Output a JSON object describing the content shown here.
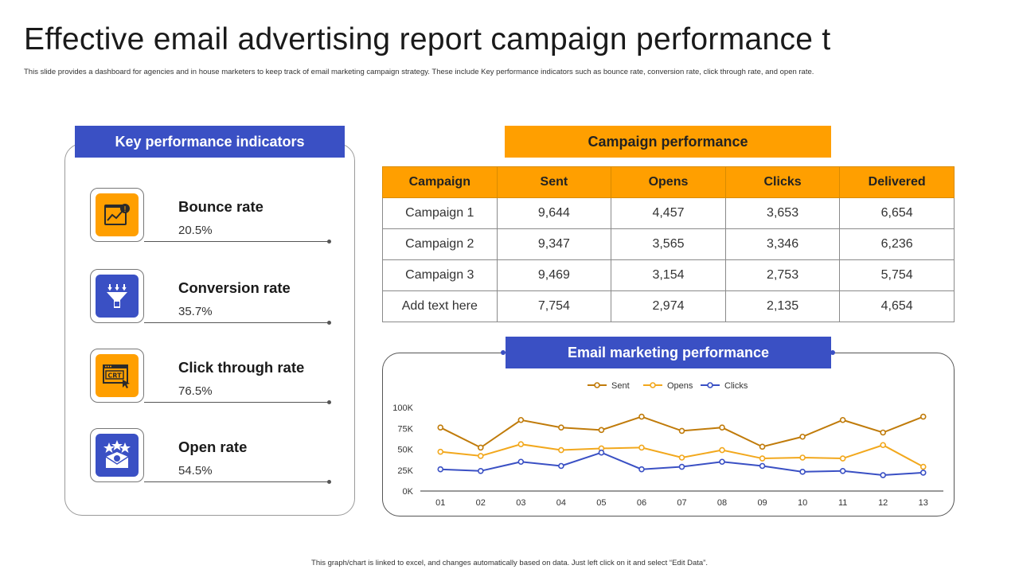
{
  "title": "Effective email advertising report campaign performance t",
  "subtitle": "This slide provides a dashboard for agencies and in house marketers to keep track of email marketing campaign strategy. These include Key performance indicators such as bounce rate, conversion rate, click through rate, and open rate.",
  "footer": "This graph/chart is linked to excel, and changes automatically based on data. Just left click on it and select “Edit Data”.",
  "colors": {
    "blue": "#3a50c4",
    "orange": "#ff9f00",
    "sent": "#c07b0a",
    "opens": "#f2a81d",
    "clicks": "#3a50c4"
  },
  "kpi": {
    "header": "Key performance indicators",
    "items": [
      {
        "label": "Bounce rate",
        "value": "20.5%",
        "icon": "bounce-chart-icon"
      },
      {
        "label": "Conversion rate",
        "value": "35.7%",
        "icon": "funnel-icon"
      },
      {
        "label": "Click through rate",
        "value": "76.5%",
        "icon": "ctr-icon"
      },
      {
        "label": "Open rate",
        "value": "54.5%",
        "icon": "open-mail-icon"
      }
    ]
  },
  "campaign": {
    "header": "Campaign performance",
    "columns": [
      "Campaign",
      "Sent",
      "Opens",
      "Clicks",
      "Delivered"
    ],
    "rows": [
      [
        "Campaign 1",
        "9,644",
        "4,457",
        "3,653",
        "6,654"
      ],
      [
        "Campaign 2",
        "9,347",
        "3,565",
        "3,346",
        "6,236"
      ],
      [
        "Campaign 3",
        "9,469",
        "3,154",
        "2,753",
        "5,754"
      ],
      [
        "Add text here",
        "7,754",
        "2,974",
        "2,135",
        "4,654"
      ]
    ]
  },
  "email_chart": {
    "header": "Email marketing performance"
  },
  "chart_data": {
    "type": "line",
    "x": [
      "01",
      "02",
      "03",
      "04",
      "05",
      "06",
      "07",
      "08",
      "09",
      "10",
      "11",
      "12",
      "13"
    ],
    "ylim": [
      0,
      100000
    ],
    "yticks": [
      "0K",
      "25K",
      "50K",
      "75K",
      "100K"
    ],
    "legend": "top-center",
    "grid": false,
    "series": [
      {
        "name": "Sent",
        "color": "#c07b0a",
        "values": [
          76000,
          52000,
          85000,
          76000,
          73000,
          89000,
          72000,
          76000,
          53000,
          65000,
          85000,
          70000,
          89000
        ]
      },
      {
        "name": "Opens",
        "color": "#f2a81d",
        "values": [
          47000,
          42000,
          56000,
          49000,
          51000,
          52000,
          40000,
          49000,
          39000,
          40000,
          39000,
          55000,
          29000
        ]
      },
      {
        "name": "Clicks",
        "color": "#3a50c4",
        "values": [
          26000,
          24000,
          35000,
          30000,
          46000,
          26000,
          29000,
          35000,
          30000,
          23000,
          24000,
          19000,
          22000
        ]
      }
    ]
  }
}
